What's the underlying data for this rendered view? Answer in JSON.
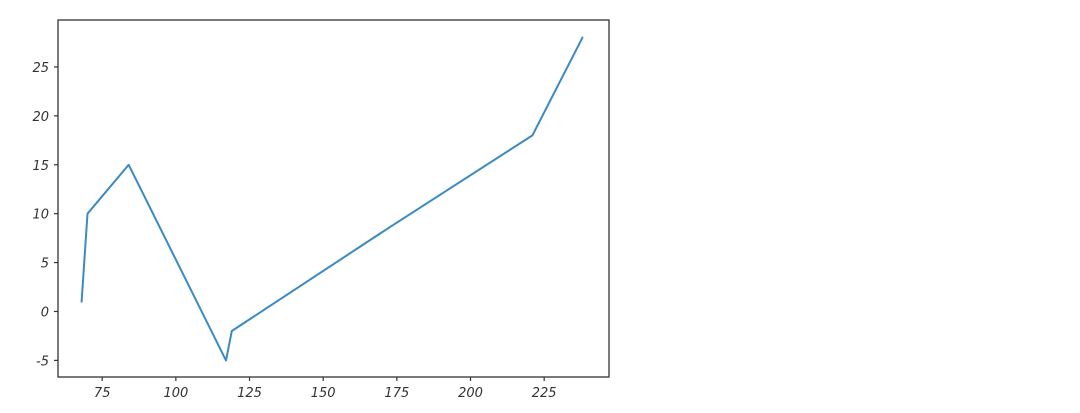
{
  "chart_data": {
    "type": "line",
    "title": "",
    "xlabel": "",
    "ylabel": "",
    "xlim": [
      60,
      247
    ],
    "ylim": [
      -6.7,
      29.8
    ],
    "xticks": [
      75,
      100,
      125,
      150,
      175,
      200,
      225
    ],
    "yticks": [
      -5,
      0,
      5,
      10,
      15,
      20,
      25
    ],
    "xtick_labels": [
      "75",
      "100",
      "125",
      "150",
      "175",
      "200",
      "225"
    ],
    "ytick_labels": [
      "-5",
      "0",
      "5",
      "10",
      "15",
      "20",
      "25"
    ],
    "grid": false,
    "style": "xkcd",
    "series": [
      {
        "color": "#3a8ac4",
        "x": [
          68,
          70,
          84,
          117,
          119,
          172,
          221,
          238
        ],
        "y": [
          1,
          10,
          15,
          -5,
          -2,
          8.5,
          18,
          28
        ]
      }
    ]
  }
}
